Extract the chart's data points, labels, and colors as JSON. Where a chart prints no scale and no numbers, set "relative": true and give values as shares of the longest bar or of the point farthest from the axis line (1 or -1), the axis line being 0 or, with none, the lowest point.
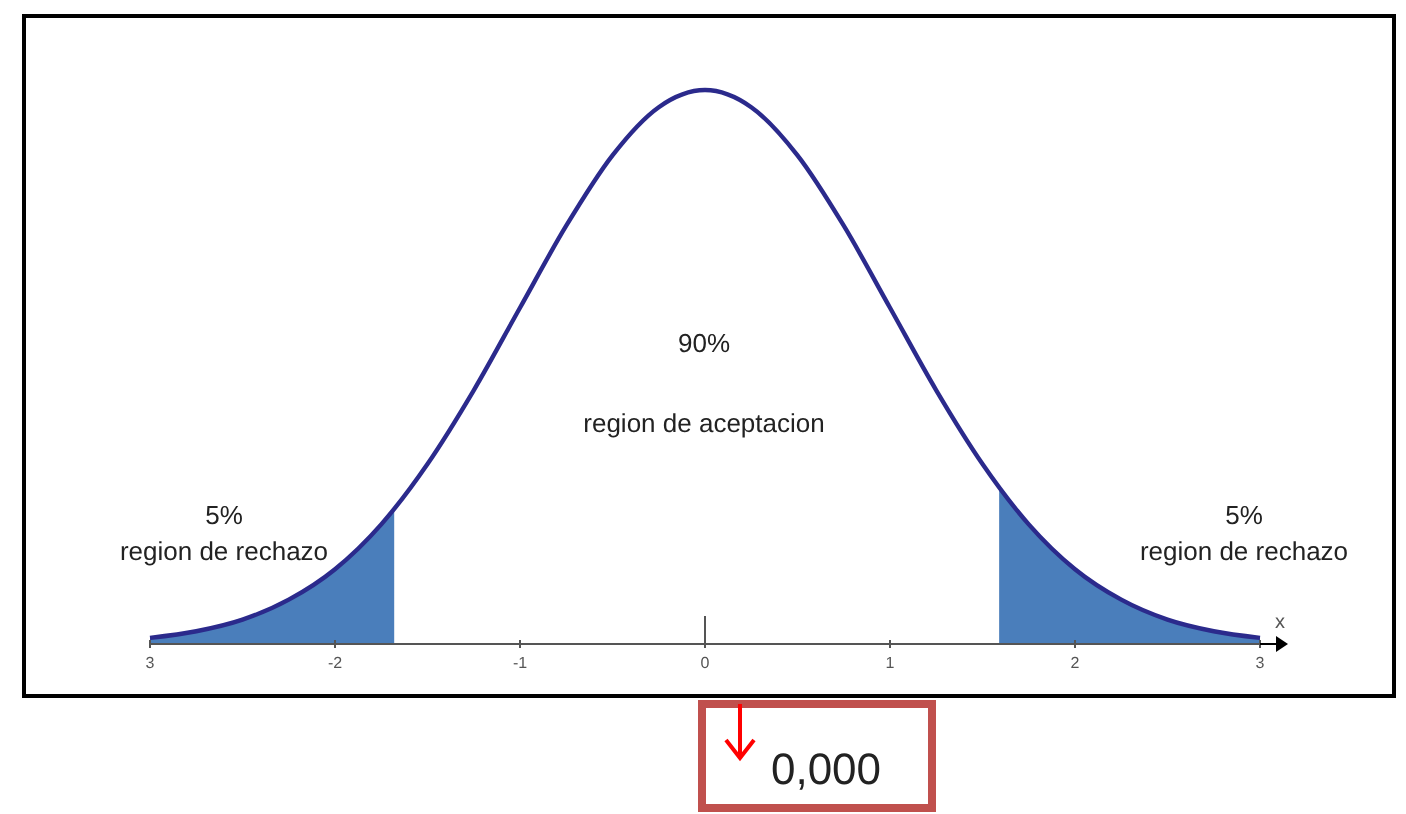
{
  "chart_data": {
    "type": "line",
    "relative": true,
    "xlabel": "x",
    "xlim": [
      -3,
      3
    ],
    "xticks": [
      {
        "value": -3,
        "label": "3"
      },
      -2,
      -1,
      0,
      1,
      2,
      3
    ],
    "series": [
      {
        "color": "#2b2a8c",
        "x": [
          -3,
          -2.75,
          -2.5,
          -2.25,
          -2,
          -1.75,
          -1.5,
          -1.25,
          -1,
          -0.75,
          -0.5,
          -0.25,
          0,
          0.25,
          0.5,
          0.75,
          1,
          1.25,
          1.5,
          1.75,
          2,
          2.25,
          2.5,
          2.75,
          3
        ],
        "values": [
          0.011,
          0.023,
          0.044,
          0.08,
          0.135,
          0.216,
          0.325,
          0.458,
          0.607,
          0.755,
          0.882,
          0.969,
          1,
          0.969,
          0.882,
          0.755,
          0.607,
          0.458,
          0.325,
          0.216,
          0.135,
          0.08,
          0.044,
          0.023,
          0.011
        ]
      },
      {
        "type": "area",
        "color": "#4a7ebb",
        "x": [
          -3,
          -2.75,
          -2.5,
          -2.25,
          -2,
          -1.75,
          -1.68
        ],
        "values": [
          0.011,
          0.023,
          0.044,
          0.08,
          0.135,
          0.216,
          0.244
        ]
      },
      {
        "type": "area",
        "color": "#4a7ebb",
        "x": [
          1.59,
          1.75,
          2,
          2.25,
          2.5,
          2.75,
          3
        ],
        "values": [
          0.283,
          0.216,
          0.135,
          0.08,
          0.044,
          0.023,
          0.011
        ]
      }
    ],
    "annotations": [
      "5%",
      "region de rechazo",
      "90%",
      "region de aceptacion",
      "5%",
      "region de rechazo",
      "0,000"
    ]
  }
}
